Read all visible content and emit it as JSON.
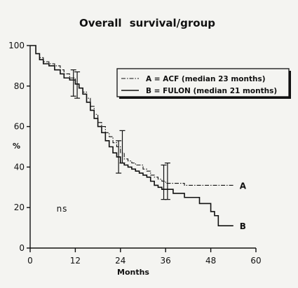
{
  "chart_data": {
    "type": "line",
    "title": "Overall    survival/group",
    "xlabel": "Months",
    "ylabel": "%",
    "xlim": [
      0,
      60
    ],
    "ylim": [
      0,
      100
    ],
    "xticks": [
      0,
      12,
      24,
      36,
      48,
      60
    ],
    "yticks": [
      0,
      20,
      40,
      60,
      80,
      100
    ],
    "grid": false,
    "legend_position": "top-right",
    "series": [
      {
        "name": "A = ACF (median 23 months)",
        "end_label": "A",
        "line_style": "dash-dot",
        "x": [
          0,
          1.5,
          2.5,
          3.5,
          5,
          6.5,
          8,
          9,
          10.5,
          12,
          13,
          14,
          15,
          16,
          17,
          18,
          19,
          20,
          21,
          22,
          23,
          24,
          25,
          26,
          27,
          28,
          29,
          30,
          31,
          32,
          33,
          34,
          35,
          36,
          38,
          41,
          45,
          48,
          49,
          50,
          51,
          53,
          54
        ],
        "y": [
          100,
          96,
          94,
          92,
          91,
          90,
          88,
          86,
          84,
          81,
          79,
          77,
          74,
          70,
          66,
          62,
          60,
          57,
          55,
          52,
          50,
          47,
          44,
          43,
          42,
          41,
          41,
          39,
          38,
          36,
          35,
          34,
          33,
          32,
          32,
          31,
          31,
          31,
          31,
          31,
          31,
          31,
          31
        ]
      },
      {
        "name": "B = FULON (median 21 months)",
        "end_label": "B",
        "line_style": "solid",
        "x": [
          0,
          1.5,
          2.5,
          3.5,
          5,
          6.5,
          8,
          9,
          10.5,
          12,
          13,
          14,
          15,
          16,
          17,
          18,
          19,
          20,
          21,
          22,
          23,
          24,
          25,
          26,
          27,
          28,
          29,
          30,
          31,
          32,
          33,
          34,
          35,
          36,
          38,
          41,
          45,
          48,
          49,
          50,
          51,
          53,
          54
        ],
        "y": [
          100,
          96,
          93,
          91,
          90,
          88,
          86,
          84,
          83,
          81,
          79,
          76,
          72,
          68,
          64,
          60,
          57,
          53,
          50,
          47,
          45,
          42,
          41,
          40,
          39,
          38,
          37,
          36,
          35,
          33,
          31,
          30,
          29,
          29,
          27,
          25,
          22,
          18,
          16,
          11,
          11,
          11,
          11
        ]
      }
    ],
    "error_bars": [
      {
        "x": 11.5,
        "low": 75,
        "high": 88
      },
      {
        "x": 12.5,
        "low": 74,
        "high": 87
      },
      {
        "x": 23.5,
        "low": 37,
        "high": 53
      },
      {
        "x": 24.5,
        "low": 42,
        "high": 58
      },
      {
        "x": 35.5,
        "low": 24,
        "high": 41
      },
      {
        "x": 36.5,
        "low": 24,
        "high": 42
      }
    ],
    "annotations": [
      {
        "text": "ns",
        "x": 7,
        "y": 18
      }
    ]
  }
}
